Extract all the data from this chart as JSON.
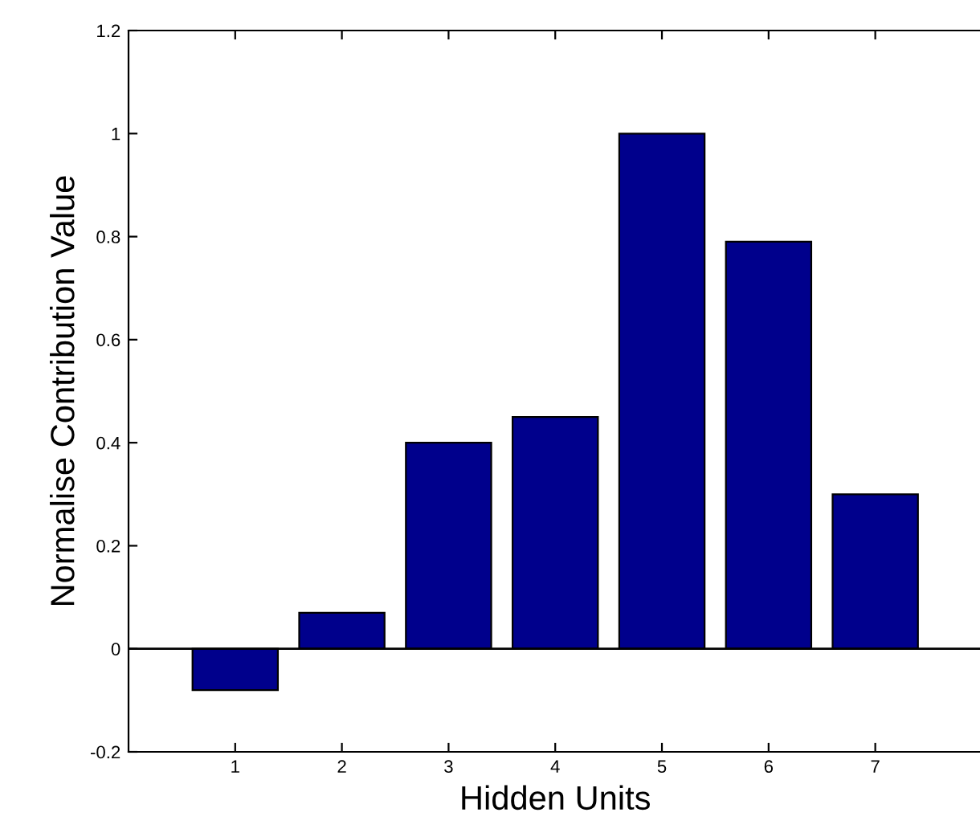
{
  "chart_data": {
    "type": "bar",
    "xlabel": "Hidden Units",
    "ylabel": "Normalise Contribution Value",
    "x": [
      1,
      2,
      3,
      4,
      5,
      6,
      7
    ],
    "values": [
      -0.08,
      0.07,
      0.4,
      0.45,
      1.0,
      0.79,
      0.3
    ],
    "color": "#00008c",
    "xlim": [
      0,
      8
    ],
    "xticks": [
      1,
      2,
      3,
      4,
      5,
      6,
      7
    ],
    "ylim": [
      -0.2,
      1.2
    ],
    "yticks": [
      {
        "value": -0.2,
        "label": "-0.2"
      },
      0,
      0.2,
      0.4,
      0.6,
      0.8,
      1,
      1.2
    ],
    "ref_lines": [
      {
        "axis": "y",
        "value": 0,
        "color": "#000000"
      }
    ],
    "grid": false,
    "legend": false
  }
}
